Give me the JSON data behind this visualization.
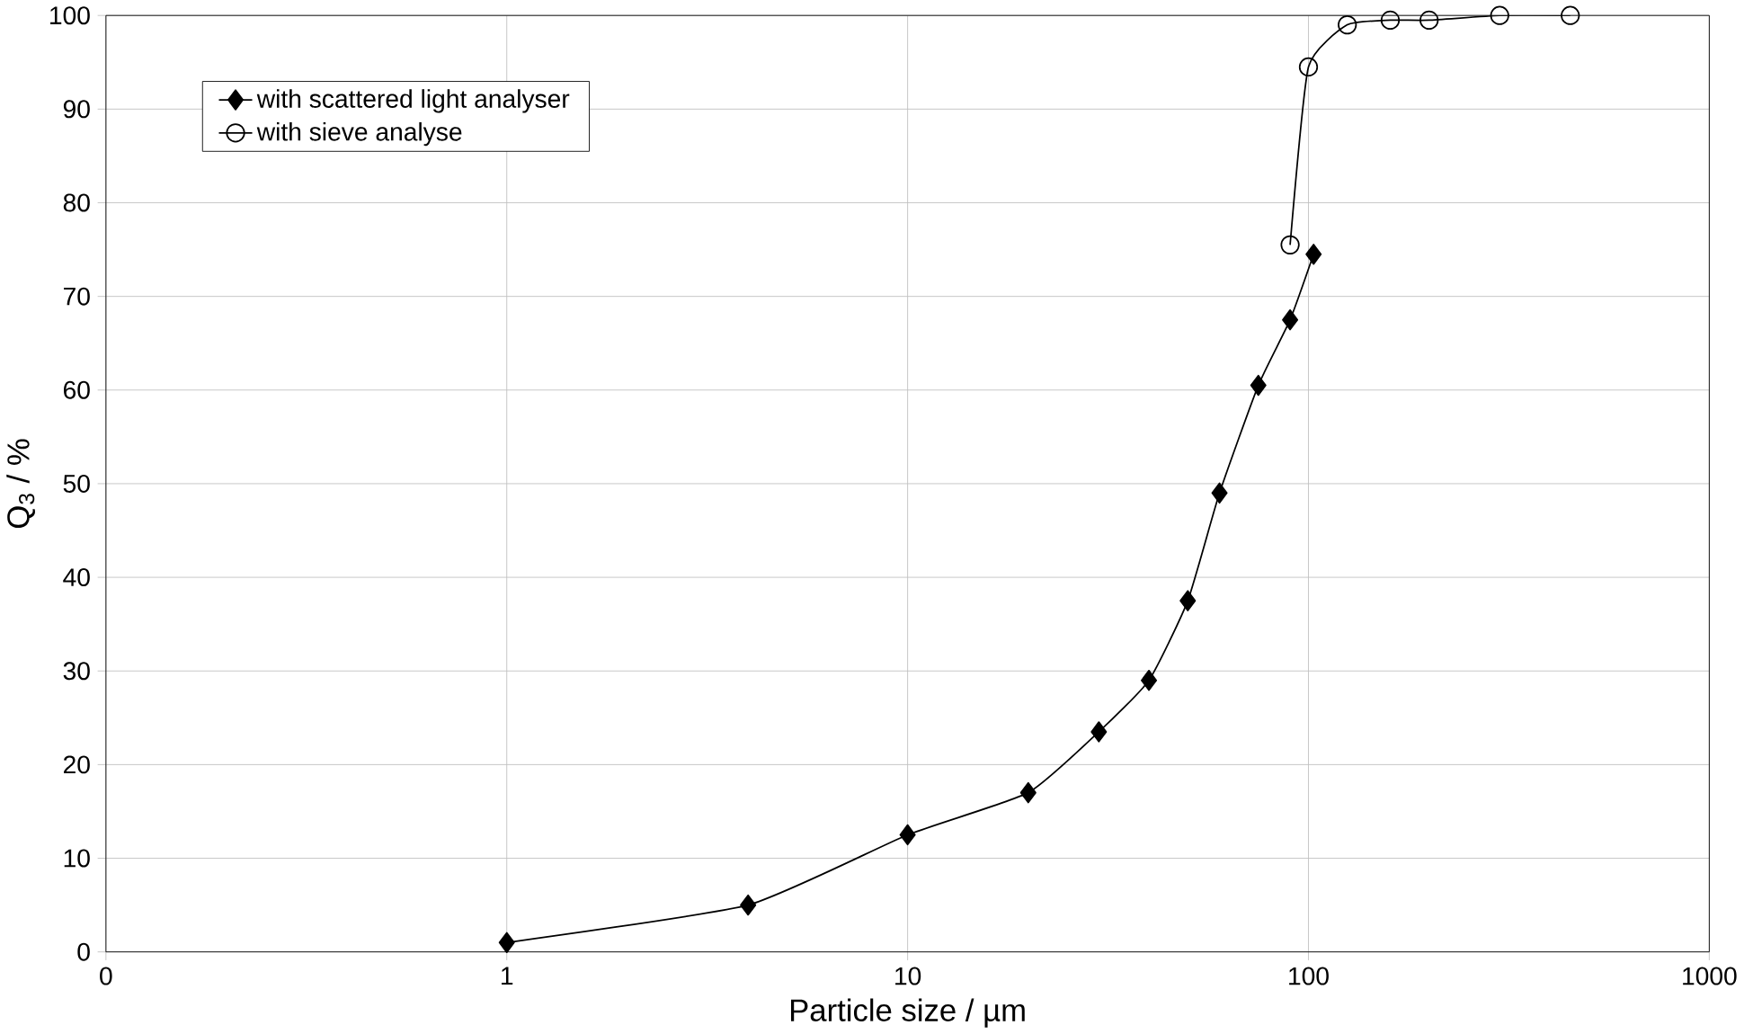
{
  "chart_data": {
    "type": "line",
    "xlabel": "Particle size / µm",
    "ylabel": "Q$_{3}$ / %",
    "log": "x",
    "grid": true,
    "legend": "top left",
    "xlim": [
      0.1,
      1000
    ],
    "xticks": [
      {
        "value": 0.1,
        "label": "0"
      },
      1,
      10,
      100,
      1000
    ],
    "ylim": [
      0,
      100
    ],
    "yticks": [
      0,
      10,
      20,
      30,
      40,
      50,
      60,
      70,
      80,
      90,
      100
    ],
    "series": [
      {
        "name": "with scattered light analyser",
        "color": "#000000",
        "marker": "diamond",
        "x": [
          1,
          4,
          10,
          20,
          30,
          40,
          50,
          60,
          75,
          90,
          103
        ],
        "values": [
          1,
          5,
          12.5,
          17,
          23.5,
          29,
          37.5,
          49,
          60.5,
          67.5,
          74.5
        ]
      },
      {
        "name": "with sieve analyse",
        "color": "#000000",
        "marker": "circle",
        "x": [
          90,
          100,
          125,
          160,
          200,
          300,
          450
        ],
        "values": [
          75.5,
          94.5,
          99,
          99.5,
          99.5,
          100,
          100
        ]
      }
    ]
  }
}
